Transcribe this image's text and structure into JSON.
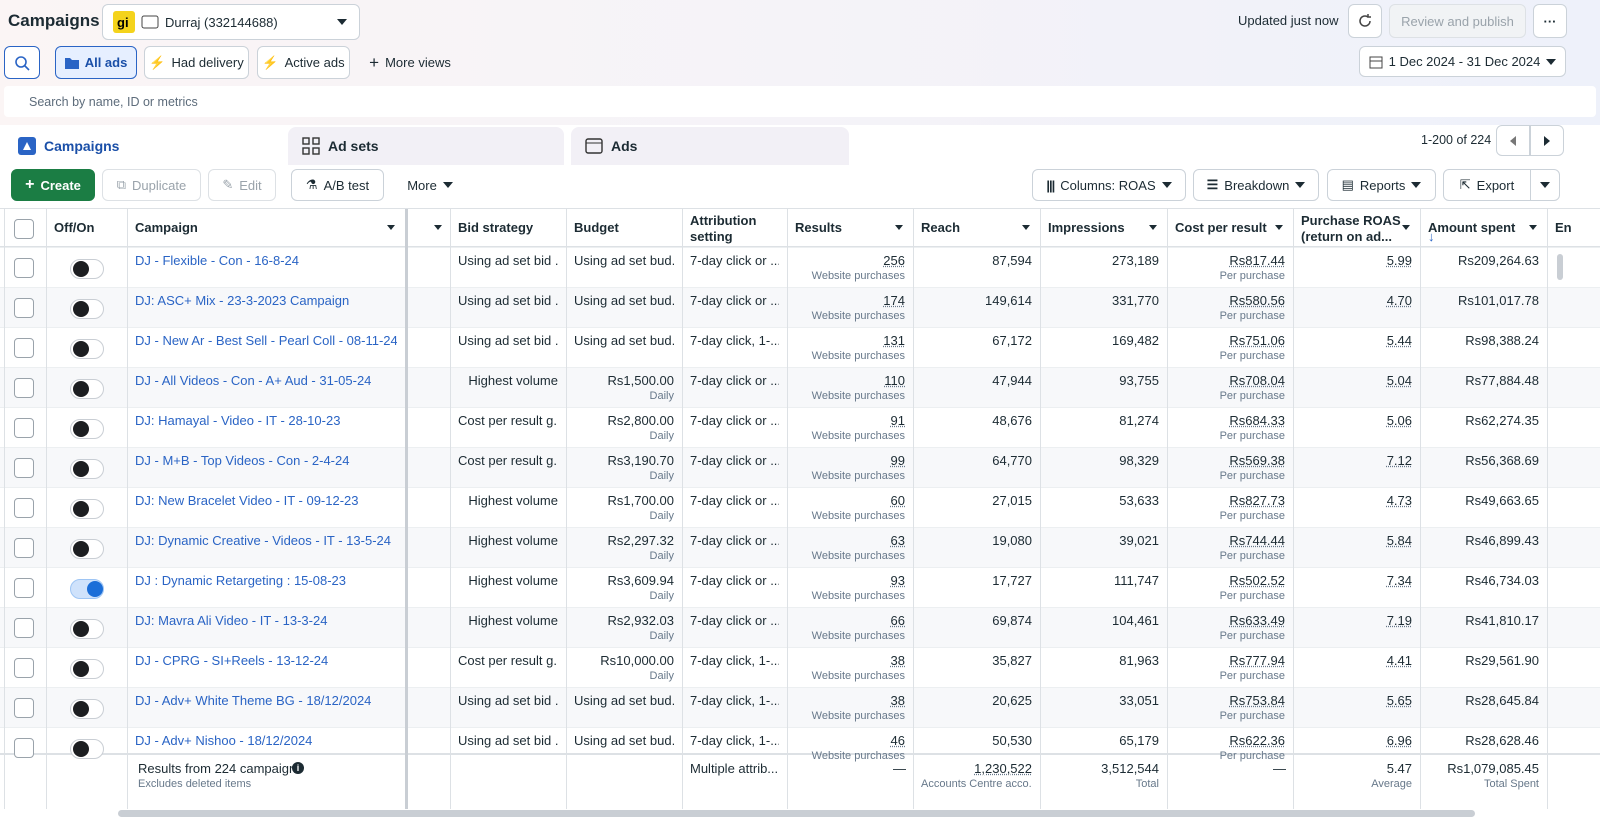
{
  "header": {
    "title": "Campaigns",
    "account": "Durraj (332144688)",
    "status": "Updated just now",
    "publish": "Review and publish"
  },
  "views": {
    "items": [
      "All ads",
      "Had delivery",
      "Active ads",
      "More views"
    ],
    "date_range": "1 Dec 2024 - 31 Dec 2024"
  },
  "search_placeholder": "Search by name, ID or metrics",
  "tabs": {
    "items": [
      "Campaigns",
      "Ad sets",
      "Ads"
    ],
    "pagination": "1-200 of 224"
  },
  "toolbar": {
    "left": [
      "Create",
      "Duplicate",
      "Edit",
      "A/B test",
      "More"
    ],
    "right": [
      "Columns: ROAS",
      "Breakdown",
      "Reports",
      "Export"
    ]
  },
  "table": {
    "columns": [
      "Off/On",
      "Campaign",
      "Bid strategy",
      "Budget",
      "Attribution setting",
      "Results",
      "Reach",
      "Impressions",
      "Cost per result",
      "Purchase ROAS (return on ad...",
      "Amount spent",
      "En"
    ],
    "rows": [
      {
        "on": false,
        "campaign": "DJ - Flexible - Con - 16-8-24",
        "bid_strategy": "Using ad set bid ...",
        "budget": "Using ad set bud...",
        "attribution": "7-day click or ...",
        "results": "256",
        "results_unit": "Website purchases",
        "reach": "87,594",
        "impressions": "273,189",
        "cost_per_result": "Rs817.44",
        "cost_unit": "Per purchase",
        "roas": "5.99",
        "amount_spent": "Rs209,264.63"
      },
      {
        "on": false,
        "campaign": "DJ: ASC+ Mix - 23-3-2023 Campaign",
        "bid_strategy": "Using ad set bid ...",
        "budget": "Using ad set bud...",
        "attribution": "7-day click or ...",
        "results": "174",
        "results_unit": "Website purchases",
        "reach": "149,614",
        "impressions": "331,770",
        "cost_per_result": "Rs580.56",
        "cost_unit": "Per purchase",
        "roas": "4.70",
        "amount_spent": "Rs101,017.78"
      },
      {
        "on": false,
        "campaign": "DJ - New Ar - Best Sell - Pearl Coll - 08-11-24",
        "bid_strategy": "Using ad set bid ...",
        "budget": "Using ad set bud...",
        "attribution": "7-day click, 1-...",
        "results": "131",
        "results_unit": "Website purchases",
        "reach": "67,172",
        "impressions": "169,482",
        "cost_per_result": "Rs751.06",
        "cost_unit": "Per purchase",
        "roas": "5.44",
        "amount_spent": "Rs98,388.24"
      },
      {
        "on": false,
        "campaign": "DJ - All Videos - Con - A+ Aud - 31-05-24",
        "bid_strategy": "Highest volume",
        "budget": "Rs1,500.00",
        "budget_unit": "Daily",
        "attribution": "7-day click or ...",
        "results": "110",
        "results_unit": "Website purchases",
        "reach": "47,944",
        "impressions": "93,755",
        "cost_per_result": "Rs708.04",
        "cost_unit": "Per purchase",
        "roas": "5.04",
        "amount_spent": "Rs77,884.48"
      },
      {
        "on": false,
        "campaign": "DJ: Hamayal - Video - IT - 28-10-23",
        "bid_strategy": "Cost per result g...",
        "budget": "Rs2,800.00",
        "budget_unit": "Daily",
        "attribution": "7-day click or ...",
        "results": "91",
        "results_unit": "Website purchases",
        "reach": "48,676",
        "impressions": "81,274",
        "cost_per_result": "Rs684.33",
        "cost_unit": "Per purchase",
        "roas": "5.06",
        "amount_spent": "Rs62,274.35"
      },
      {
        "on": false,
        "campaign": "DJ - M+B - Top Videos - Con - 2-4-24",
        "bid_strategy": "Cost per result g...",
        "budget": "Rs3,190.70",
        "budget_unit": "Daily",
        "attribution": "7-day click or ...",
        "results": "99",
        "results_unit": "Website purchases",
        "reach": "64,770",
        "impressions": "98,329",
        "cost_per_result": "Rs569.38",
        "cost_unit": "Per purchase",
        "roas": "7.12",
        "amount_spent": "Rs56,368.69"
      },
      {
        "on": false,
        "campaign": "DJ: New Bracelet Video - IT - 09-12-23",
        "bid_strategy": "Highest volume",
        "budget": "Rs1,700.00",
        "budget_unit": "Daily",
        "attribution": "7-day click or ...",
        "results": "60",
        "results_unit": "Website purchases",
        "reach": "27,015",
        "impressions": "53,633",
        "cost_per_result": "Rs827.73",
        "cost_unit": "Per purchase",
        "roas": "4.73",
        "amount_spent": "Rs49,663.65"
      },
      {
        "on": false,
        "campaign": "DJ: Dynamic Creative - Videos - IT - 13-5-24",
        "bid_strategy": "Highest volume",
        "budget": "Rs2,297.32",
        "budget_unit": "Daily",
        "attribution": "7-day click or ...",
        "results": "63",
        "results_unit": "Website purchases",
        "reach": "19,080",
        "impressions": "39,021",
        "cost_per_result": "Rs744.44",
        "cost_unit": "Per purchase",
        "roas": "5.84",
        "amount_spent": "Rs46,899.43"
      },
      {
        "on": true,
        "campaign": "DJ : Dynamic Retargeting : 15-08-23",
        "bid_strategy": "Highest volume",
        "budget": "Rs3,609.94",
        "budget_unit": "Daily",
        "attribution": "7-day click or ...",
        "results": "93",
        "results_unit": "Website purchases",
        "reach": "17,727",
        "impressions": "111,747",
        "cost_per_result": "Rs502.52",
        "cost_unit": "Per purchase",
        "roas": "7.34",
        "amount_spent": "Rs46,734.03"
      },
      {
        "on": false,
        "campaign": "DJ: Mavra Ali Video - IT - 13-3-24",
        "bid_strategy": "Highest volume",
        "budget": "Rs2,932.03",
        "budget_unit": "Daily",
        "attribution": "7-day click or ...",
        "results": "66",
        "results_unit": "Website purchases",
        "reach": "69,874",
        "impressions": "104,461",
        "cost_per_result": "Rs633.49",
        "cost_unit": "Per purchase",
        "roas": "7.19",
        "amount_spent": "Rs41,810.17"
      },
      {
        "on": false,
        "campaign": "DJ - CPRG - SI+Reels - 13-12-24",
        "bid_strategy": "Cost per result g...",
        "budget": "Rs10,000.00",
        "budget_unit": "Daily",
        "attribution": "7-day click, 1-...",
        "results": "38",
        "results_unit": "Website purchases",
        "reach": "35,827",
        "impressions": "81,963",
        "cost_per_result": "Rs777.94",
        "cost_unit": "Per purchase",
        "roas": "4.41",
        "amount_spent": "Rs29,561.90"
      },
      {
        "on": false,
        "campaign": "DJ - Adv+ White Theme BG - 18/12/2024",
        "bid_strategy": "Using ad set bid ...",
        "budget": "Using ad set bud...",
        "attribution": "7-day click, 1-...",
        "results": "38",
        "results_unit": "Website purchases",
        "reach": "20,625",
        "impressions": "33,051",
        "cost_per_result": "Rs753.84",
        "cost_unit": "Per purchase",
        "roas": "5.65",
        "amount_spent": "Rs28,645.84"
      },
      {
        "on": false,
        "campaign": "DJ - Adv+ Nishoo - 18/12/2024",
        "bid_strategy": "Using ad set bid ...",
        "budget": "Using ad set bud...",
        "attribution": "7-day click, 1-...",
        "results": "46",
        "results_unit": "Website purchases",
        "reach": "50,530",
        "impressions": "65,179",
        "cost_per_result": "Rs622.36",
        "cost_unit": "Per purchase",
        "roas": "6.96",
        "amount_spent": "Rs28,628.46"
      }
    ],
    "footer": {
      "summary": "Results from 224 campaigns",
      "summary_note": "Excludes deleted items",
      "attribution": "Multiple attrib...",
      "results": "—",
      "reach": "1,230,522",
      "reach_unit": "Accounts Centre acco...",
      "impressions": "3,512,544",
      "impressions_unit": "Total",
      "cost_per_result": "—",
      "roas": "5.47",
      "roas_unit": "Average",
      "amount_spent": "Rs1,079,085.45",
      "amount_spent_unit": "Total Spent"
    }
  }
}
